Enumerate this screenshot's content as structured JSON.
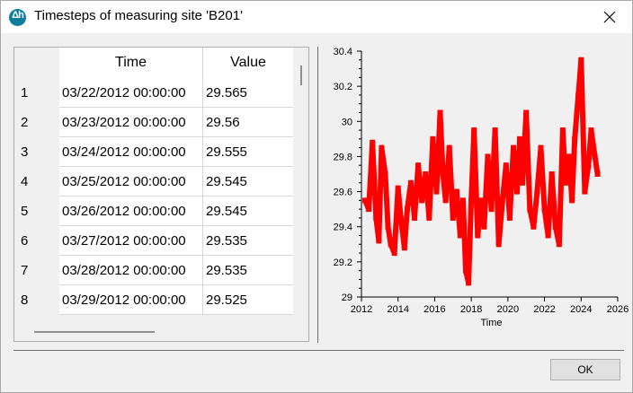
{
  "window": {
    "icon": "delta-h-app-icon",
    "title": "Timesteps of measuring site 'B201'",
    "close_icon": "close-icon"
  },
  "table": {
    "columns": [
      "Time",
      "Value"
    ],
    "rows": [
      {
        "num": "1",
        "time": "03/22/2012 00:00:00",
        "value": "29.565"
      },
      {
        "num": "2",
        "time": "03/23/2012 00:00:00",
        "value": "29.56"
      },
      {
        "num": "3",
        "time": "03/24/2012 00:00:00",
        "value": "29.555"
      },
      {
        "num": "4",
        "time": "03/25/2012 00:00:00",
        "value": "29.545"
      },
      {
        "num": "5",
        "time": "03/26/2012 00:00:00",
        "value": "29.545"
      },
      {
        "num": "6",
        "time": "03/27/2012 00:00:00",
        "value": "29.535"
      },
      {
        "num": "7",
        "time": "03/28/2012 00:00:00",
        "value": "29.535"
      },
      {
        "num": "8",
        "time": "03/29/2012 00:00:00",
        "value": "29.525"
      }
    ]
  },
  "chart_data": {
    "type": "scatter",
    "xlabel": "Time",
    "ylabel": "",
    "xlim": [
      2012,
      2026
    ],
    "ylim": [
      29,
      30.4
    ],
    "x_ticks": [
      "2012",
      "2014",
      "2016",
      "2018",
      "2020",
      "2022",
      "2024",
      "2026"
    ],
    "y_ticks": [
      "29",
      "29.2",
      "29.4",
      "29.6",
      "29.8",
      "30",
      "30.2",
      "30.4"
    ],
    "grid": false,
    "color": "#ff0000",
    "series": [
      {
        "x": [
          2012.2,
          2012.4,
          2012.6,
          2012.8,
          2012.95,
          2013.1,
          2013.3,
          2013.45,
          2013.6,
          2013.8,
          2014.0,
          2014.15,
          2014.35,
          2014.5,
          2014.7,
          2014.9,
          2015.1,
          2015.3,
          2015.5,
          2015.7,
          2015.9,
          2016.1,
          2016.3,
          2016.45,
          2016.6,
          2016.8,
          2017.0,
          2017.2,
          2017.4,
          2017.55,
          2017.7,
          2017.85,
          2018.0,
          2018.15,
          2018.35,
          2018.55,
          2018.7,
          2018.9,
          2019.1,
          2019.3,
          2019.5,
          2019.7,
          2019.9,
          2020.1,
          2020.3,
          2020.5,
          2020.65,
          2020.8,
          2021.0,
          2021.2,
          2021.4,
          2021.6,
          2021.8,
          2022.0,
          2022.2,
          2022.4,
          2022.6,
          2022.8,
          2023.0,
          2023.15,
          2023.35,
          2023.5,
          2023.65,
          2023.85,
          2024.0,
          2024.2,
          2024.4,
          2024.55,
          2024.75,
          2024.9
        ],
        "y": [
          29.55,
          29.5,
          29.88,
          29.45,
          29.32,
          29.85,
          29.7,
          29.4,
          29.3,
          29.25,
          29.62,
          29.45,
          29.28,
          29.5,
          29.65,
          29.45,
          29.75,
          29.55,
          29.7,
          29.45,
          29.9,
          29.6,
          30.05,
          29.7,
          29.55,
          29.85,
          29.45,
          29.6,
          29.35,
          29.55,
          29.15,
          29.08,
          29.55,
          29.95,
          29.35,
          29.55,
          29.4,
          29.8,
          29.5,
          29.95,
          29.3,
          29.55,
          29.75,
          29.45,
          29.85,
          29.6,
          29.9,
          29.65,
          30.05,
          29.5,
          29.4,
          29.6,
          29.85,
          29.5,
          29.35,
          29.7,
          29.4,
          29.3,
          29.95,
          29.65,
          29.8,
          29.55,
          29.9,
          30.15,
          30.35,
          29.6,
          29.75,
          29.95,
          29.8,
          29.7
        ]
      }
    ]
  },
  "footer": {
    "ok_label": "OK"
  }
}
